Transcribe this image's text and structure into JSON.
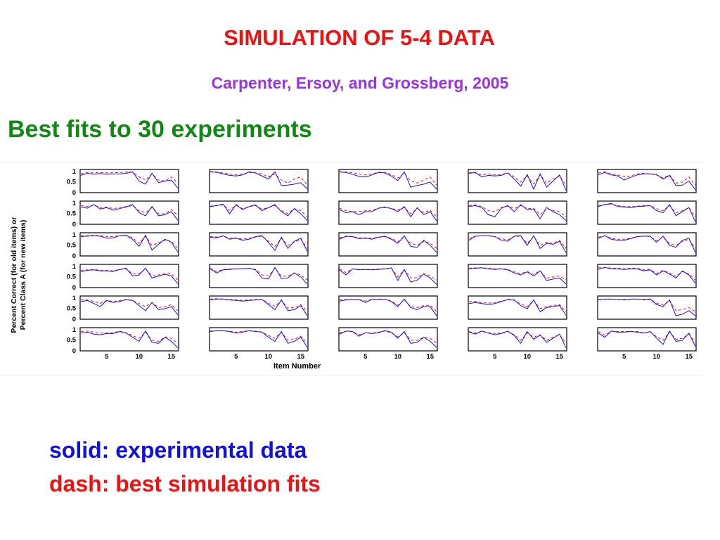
{
  "slide": {
    "title": "SIMULATION OF 5-4 DATA",
    "subtitle": "Carpenter, Ersoy, and Grossberg, 2005",
    "heading": "Best fits to 30 experiments",
    "legend_solid": "solid: experimental data",
    "legend_dash": "dash: best simulation fits"
  },
  "colors": {
    "title": "#ee1111",
    "subtitle": "#9933dd",
    "heading": "#118811",
    "experimental": "#1111dd",
    "simulation": "#ee1111"
  },
  "chart_data": {
    "type": "line",
    "grid": false,
    "ylabel_line1": "Percent Correct (for old items) or",
    "ylabel_line2": "Percent  Class A (for new items)",
    "xlabel": "Item Number",
    "ylim": [
      0,
      1
    ],
    "xlim": [
      1,
      16
    ],
    "y_ticks": [
      "1",
      "0.5",
      "0"
    ],
    "x_ticks": [
      "5",
      "10",
      "15"
    ],
    "rows": 6,
    "cols": 5,
    "series_styles": [
      {
        "label": "solid: experimental data",
        "style": "solid",
        "color": "#1111dd"
      },
      {
        "label": "dash: best simulation fits",
        "style": "dash",
        "color": "#ee1111"
      }
    ],
    "panels": [
      {
        "experimental": [
          0.78,
          0.88,
          0.83,
          0.87,
          0.83,
          0.85,
          0.85,
          0.88,
          0.95,
          0.5,
          0.35,
          0.88,
          0.42,
          0.5,
          0.55,
          0.15
        ],
        "simulation": [
          0.86,
          0.92,
          0.9,
          0.92,
          0.9,
          0.91,
          0.92,
          0.94,
          0.95,
          0.7,
          0.55,
          0.86,
          0.55,
          0.5,
          0.7,
          0.4
        ]
      },
      {
        "experimental": [
          0.95,
          0.93,
          0.85,
          0.78,
          0.75,
          0.8,
          0.95,
          0.9,
          0.75,
          0.6,
          0.95,
          0.28,
          0.3,
          0.35,
          0.42,
          0.12
        ],
        "simulation": [
          0.96,
          0.95,
          0.9,
          0.85,
          0.8,
          0.85,
          0.92,
          0.9,
          0.85,
          0.7,
          0.85,
          0.55,
          0.4,
          0.6,
          0.7,
          0.3
        ]
      },
      {
        "experimental": [
          0.95,
          0.92,
          0.83,
          0.73,
          0.7,
          0.8,
          0.92,
          0.9,
          0.75,
          0.52,
          0.95,
          0.2,
          0.28,
          0.35,
          0.45,
          0.1
        ],
        "simulation": [
          0.96,
          0.94,
          0.9,
          0.85,
          0.8,
          0.85,
          0.93,
          0.92,
          0.82,
          0.65,
          0.88,
          0.5,
          0.4,
          0.55,
          0.7,
          0.3
        ]
      },
      {
        "experimental": [
          0.88,
          0.92,
          0.7,
          0.78,
          0.75,
          0.78,
          0.9,
          0.6,
          0.25,
          0.82,
          0.1,
          0.85,
          0.2,
          0.5,
          0.8,
          0.05
        ],
        "simulation": [
          0.92,
          0.9,
          0.8,
          0.85,
          0.8,
          0.82,
          0.9,
          0.7,
          0.45,
          0.75,
          0.35,
          0.8,
          0.4,
          0.6,
          0.75,
          0.3
        ]
      },
      {
        "experimental": [
          0.8,
          0.92,
          0.8,
          0.75,
          0.55,
          0.68,
          0.8,
          0.85,
          0.85,
          0.82,
          0.6,
          0.78,
          0.28,
          0.3,
          0.5,
          0.08
        ],
        "simulation": [
          0.9,
          0.95,
          0.85,
          0.8,
          0.72,
          0.75,
          0.85,
          0.88,
          0.85,
          0.8,
          0.65,
          0.8,
          0.4,
          0.45,
          0.7,
          0.3
        ]
      },
      {
        "experimental": [
          0.78,
          0.72,
          0.9,
          0.68,
          0.75,
          0.62,
          0.7,
          0.78,
          0.9,
          0.5,
          0.35,
          0.8,
          0.35,
          0.4,
          0.55,
          0.12
        ],
        "simulation": [
          0.85,
          0.8,
          0.88,
          0.75,
          0.78,
          0.7,
          0.75,
          0.8,
          0.85,
          0.6,
          0.5,
          0.75,
          0.45,
          0.45,
          0.65,
          0.35
        ]
      },
      {
        "experimental": [
          0.8,
          0.85,
          0.92,
          0.45,
          0.9,
          0.65,
          0.8,
          0.88,
          0.6,
          0.75,
          0.9,
          0.55,
          0.35,
          0.7,
          0.45,
          0.12
        ],
        "simulation": [
          0.82,
          0.85,
          0.88,
          0.62,
          0.85,
          0.7,
          0.8,
          0.85,
          0.68,
          0.75,
          0.85,
          0.6,
          0.45,
          0.7,
          0.6,
          0.3
        ]
      },
      {
        "experimental": [
          0.65,
          0.5,
          0.55,
          0.4,
          0.55,
          0.55,
          0.72,
          0.78,
          0.7,
          0.55,
          0.8,
          0.3,
          0.75,
          0.4,
          0.55,
          0.1
        ],
        "simulation": [
          0.72,
          0.6,
          0.55,
          0.55,
          0.6,
          0.62,
          0.72,
          0.75,
          0.72,
          0.62,
          0.75,
          0.45,
          0.7,
          0.5,
          0.62,
          0.3
        ]
      },
      {
        "experimental": [
          0.8,
          0.85,
          0.75,
          0.4,
          0.3,
          0.72,
          0.85,
          0.55,
          0.9,
          0.65,
          0.68,
          0.2,
          0.75,
          0.55,
          0.4,
          0.12
        ],
        "simulation": [
          0.85,
          0.88,
          0.8,
          0.6,
          0.55,
          0.75,
          0.82,
          0.7,
          0.85,
          0.7,
          0.72,
          0.4,
          0.7,
          0.6,
          0.55,
          0.3
        ]
      },
      {
        "experimental": [
          0.8,
          0.9,
          0.95,
          0.8,
          0.78,
          0.75,
          0.8,
          0.82,
          0.85,
          0.6,
          0.5,
          0.9,
          0.35,
          0.55,
          0.75,
          0.05
        ],
        "simulation": [
          0.85,
          0.9,
          0.92,
          0.85,
          0.8,
          0.8,
          0.82,
          0.85,
          0.85,
          0.7,
          0.6,
          0.85,
          0.5,
          0.6,
          0.75,
          0.3
        ]
      },
      {
        "experimental": [
          0.88,
          0.9,
          0.92,
          0.9,
          0.8,
          0.82,
          0.92,
          0.95,
          0.75,
          0.4,
          0.95,
          0.22,
          0.5,
          0.75,
          0.6,
          0.12
        ],
        "simulation": [
          0.92,
          0.92,
          0.94,
          0.92,
          0.88,
          0.88,
          0.92,
          0.94,
          0.82,
          0.55,
          0.9,
          0.45,
          0.58,
          0.7,
          0.65,
          0.3
        ]
      },
      {
        "experimental": [
          0.85,
          0.82,
          0.92,
          0.75,
          0.8,
          0.7,
          0.75,
          0.88,
          0.92,
          0.6,
          0.2,
          0.85,
          0.3,
          0.65,
          0.8,
          0.15
        ],
        "simulation": [
          0.88,
          0.86,
          0.9,
          0.8,
          0.82,
          0.75,
          0.8,
          0.86,
          0.9,
          0.65,
          0.4,
          0.8,
          0.45,
          0.6,
          0.75,
          0.3
        ]
      },
      {
        "experimental": [
          0.75,
          0.9,
          0.88,
          0.78,
          0.8,
          0.75,
          0.85,
          0.9,
          0.75,
          0.55,
          0.92,
          0.4,
          0.35,
          0.7,
          0.45,
          0.1
        ],
        "simulation": [
          0.82,
          0.88,
          0.88,
          0.82,
          0.82,
          0.8,
          0.85,
          0.88,
          0.8,
          0.62,
          0.85,
          0.55,
          0.45,
          0.65,
          0.55,
          0.3
        ]
      },
      {
        "experimental": [
          0.7,
          0.9,
          0.92,
          0.92,
          0.88,
          0.7,
          0.65,
          0.9,
          0.92,
          0.45,
          0.92,
          0.3,
          0.55,
          0.5,
          0.65,
          0.1
        ],
        "simulation": [
          0.8,
          0.9,
          0.92,
          0.92,
          0.88,
          0.78,
          0.72,
          0.88,
          0.9,
          0.55,
          0.88,
          0.45,
          0.6,
          0.55,
          0.7,
          0.3
        ]
      },
      {
        "experimental": [
          0.8,
          0.92,
          0.75,
          0.7,
          0.7,
          0.78,
          0.88,
          0.9,
          0.9,
          0.6,
          0.9,
          0.45,
          0.35,
          0.7,
          0.8,
          0.1
        ],
        "simulation": [
          0.85,
          0.92,
          0.8,
          0.75,
          0.75,
          0.8,
          0.88,
          0.9,
          0.88,
          0.68,
          0.85,
          0.55,
          0.45,
          0.65,
          0.75,
          0.3
        ]
      },
      {
        "experimental": [
          0.7,
          0.78,
          0.8,
          0.75,
          0.75,
          0.72,
          0.82,
          0.88,
          0.5,
          0.55,
          0.88,
          0.4,
          0.5,
          0.58,
          0.5,
          0.12
        ],
        "simulation": [
          0.78,
          0.8,
          0.82,
          0.78,
          0.78,
          0.75,
          0.82,
          0.85,
          0.6,
          0.62,
          0.85,
          0.5,
          0.55,
          0.62,
          0.6,
          0.3
        ]
      },
      {
        "experimental": [
          0.85,
          0.65,
          0.8,
          0.82,
          0.85,
          0.85,
          0.88,
          0.8,
          0.4,
          0.35,
          0.92,
          0.38,
          0.4,
          0.65,
          0.45,
          0.1
        ],
        "simulation": [
          0.88,
          0.72,
          0.82,
          0.85,
          0.85,
          0.85,
          0.88,
          0.82,
          0.55,
          0.5,
          0.88,
          0.5,
          0.5,
          0.65,
          0.55,
          0.3
        ]
      },
      {
        "experimental": [
          0.8,
          0.55,
          0.85,
          0.8,
          0.82,
          0.8,
          0.82,
          0.85,
          0.9,
          0.28,
          0.82,
          0.2,
          0.3,
          0.6,
          0.4,
          0.08
        ],
        "simulation": [
          0.85,
          0.65,
          0.85,
          0.82,
          0.82,
          0.82,
          0.84,
          0.86,
          0.88,
          0.45,
          0.8,
          0.4,
          0.42,
          0.62,
          0.5,
          0.3
        ]
      },
      {
        "experimental": [
          0.85,
          0.88,
          0.9,
          0.85,
          0.82,
          0.85,
          0.8,
          0.65,
          0.55,
          0.7,
          0.5,
          0.75,
          0.28,
          0.35,
          0.4,
          0.1
        ],
        "simulation": [
          0.88,
          0.9,
          0.9,
          0.88,
          0.85,
          0.86,
          0.82,
          0.7,
          0.62,
          0.72,
          0.58,
          0.75,
          0.4,
          0.45,
          0.5,
          0.3
        ]
      },
      {
        "experimental": [
          0.82,
          0.92,
          0.85,
          0.85,
          0.82,
          0.85,
          0.85,
          0.75,
          0.8,
          0.55,
          0.75,
          0.6,
          0.4,
          0.75,
          0.55,
          0.15
        ],
        "simulation": [
          0.9,
          0.92,
          0.88,
          0.88,
          0.85,
          0.88,
          0.88,
          0.8,
          0.82,
          0.62,
          0.78,
          0.65,
          0.48,
          0.72,
          0.6,
          0.3
        ]
      },
      {
        "experimental": [
          0.8,
          0.85,
          0.7,
          0.55,
          0.85,
          0.75,
          0.8,
          0.9,
          0.85,
          0.6,
          0.35,
          0.75,
          0.4,
          0.45,
          0.55,
          0.15
        ],
        "simulation": [
          0.88,
          0.88,
          0.8,
          0.7,
          0.85,
          0.8,
          0.85,
          0.88,
          0.85,
          0.7,
          0.55,
          0.75,
          0.5,
          0.55,
          0.65,
          0.35
        ]
      },
      {
        "experimental": [
          0.88,
          0.92,
          0.92,
          0.88,
          0.85,
          0.82,
          0.85,
          0.88,
          0.9,
          0.65,
          0.4,
          0.88,
          0.35,
          0.4,
          0.6,
          0.1
        ],
        "simulation": [
          0.92,
          0.94,
          0.92,
          0.9,
          0.88,
          0.86,
          0.88,
          0.9,
          0.9,
          0.72,
          0.55,
          0.85,
          0.48,
          0.5,
          0.65,
          0.3
        ]
      },
      {
        "experimental": [
          0.82,
          0.88,
          0.9,
          0.9,
          0.75,
          0.9,
          0.9,
          0.92,
          0.8,
          0.55,
          0.92,
          0.5,
          0.4,
          0.55,
          0.55,
          0.1
        ],
        "simulation": [
          0.88,
          0.9,
          0.9,
          0.9,
          0.82,
          0.9,
          0.92,
          0.92,
          0.82,
          0.62,
          0.88,
          0.55,
          0.5,
          0.6,
          0.62,
          0.3
        ]
      },
      {
        "experimental": [
          0.7,
          0.75,
          0.7,
          0.65,
          0.7,
          0.8,
          0.9,
          0.88,
          0.6,
          0.45,
          0.88,
          0.3,
          0.5,
          0.55,
          0.6,
          0.12
        ],
        "simulation": [
          0.8,
          0.8,
          0.75,
          0.72,
          0.75,
          0.82,
          0.88,
          0.86,
          0.68,
          0.55,
          0.85,
          0.45,
          0.55,
          0.6,
          0.65,
          0.3
        ]
      },
      {
        "experimental": [
          0.88,
          0.92,
          0.92,
          0.9,
          0.88,
          0.92,
          0.92,
          0.9,
          0.92,
          0.65,
          0.55,
          0.88,
          0.1,
          0.18,
          0.35,
          0.1
        ],
        "simulation": [
          0.9,
          0.92,
          0.92,
          0.9,
          0.9,
          0.92,
          0.92,
          0.88,
          0.9,
          0.72,
          0.62,
          0.85,
          0.35,
          0.4,
          0.5,
          0.3
        ]
      },
      {
        "experimental": [
          0.8,
          0.85,
          0.75,
          0.72,
          0.78,
          0.78,
          0.88,
          0.8,
          0.6,
          0.4,
          0.9,
          0.35,
          0.3,
          0.6,
          0.4,
          0.08
        ],
        "simulation": [
          0.88,
          0.9,
          0.85,
          0.8,
          0.82,
          0.82,
          0.9,
          0.82,
          0.68,
          0.55,
          0.85,
          0.45,
          0.4,
          0.62,
          0.55,
          0.3
        ]
      },
      {
        "experimental": [
          0.88,
          0.92,
          0.92,
          0.88,
          0.8,
          0.85,
          0.92,
          0.88,
          0.85,
          0.6,
          0.4,
          0.88,
          0.3,
          0.4,
          0.6,
          0.1
        ],
        "simulation": [
          0.9,
          0.92,
          0.92,
          0.9,
          0.85,
          0.88,
          0.92,
          0.9,
          0.85,
          0.68,
          0.55,
          0.85,
          0.45,
          0.5,
          0.65,
          0.3
        ]
      },
      {
        "experimental": [
          0.75,
          0.9,
          0.88,
          0.65,
          0.82,
          0.78,
          0.82,
          0.92,
          0.85,
          0.55,
          0.88,
          0.3,
          0.35,
          0.6,
          0.4,
          0.1
        ],
        "simulation": [
          0.82,
          0.9,
          0.88,
          0.72,
          0.82,
          0.8,
          0.85,
          0.9,
          0.82,
          0.62,
          0.82,
          0.45,
          0.45,
          0.6,
          0.55,
          0.3
        ]
      },
      {
        "experimental": [
          0.85,
          0.75,
          0.9,
          0.8,
          0.72,
          0.78,
          0.9,
          0.68,
          0.3,
          0.88,
          0.5,
          0.7,
          0.35,
          0.55,
          0.75,
          0.08
        ],
        "simulation": [
          0.88,
          0.8,
          0.9,
          0.82,
          0.78,
          0.82,
          0.88,
          0.72,
          0.45,
          0.82,
          0.6,
          0.72,
          0.45,
          0.6,
          0.72,
          0.3
        ]
      },
      {
        "experimental": [
          0.8,
          0.6,
          0.9,
          0.85,
          0.85,
          0.88,
          0.85,
          0.8,
          0.88,
          0.55,
          0.25,
          0.9,
          0.4,
          0.45,
          0.8,
          0.15
        ],
        "simulation": [
          0.88,
          0.7,
          0.9,
          0.88,
          0.88,
          0.88,
          0.88,
          0.82,
          0.86,
          0.62,
          0.45,
          0.85,
          0.5,
          0.55,
          0.75,
          0.35
        ]
      }
    ]
  }
}
